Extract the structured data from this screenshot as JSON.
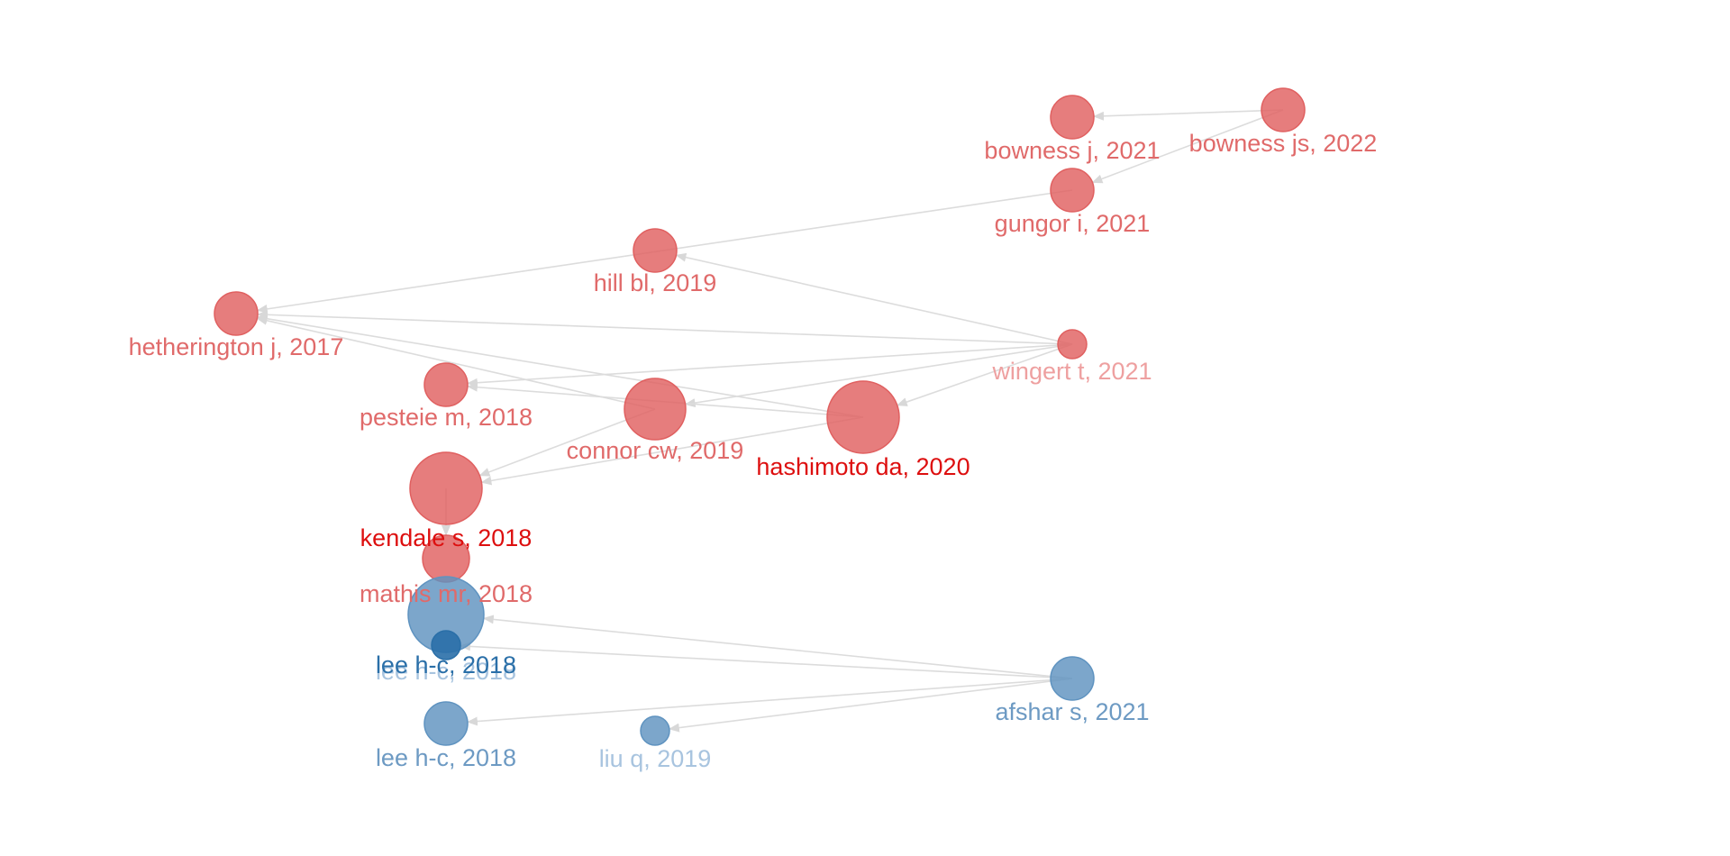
{
  "colors": {
    "red": "#e06060",
    "red_label": "#e06a6a",
    "red_dark_label": "#dd0f0f",
    "red_light_label": "#eea0a0",
    "blue": "#5f93c0",
    "blue_label": "#6d9ac3",
    "blue_dark": "#2a6fa8",
    "blue_light_label": "#a8c4df",
    "edge": "#dcdcdc"
  },
  "nodes": [
    {
      "id": "bowness_js_2022",
      "label": "bowness js, 2022",
      "cluster": "red",
      "weight": 2
    },
    {
      "id": "bowness_j_2021",
      "label": "bowness j, 2021",
      "cluster": "red",
      "weight": 2
    },
    {
      "id": "gungor_i_2021",
      "label": "gungor i, 2021",
      "cluster": "red",
      "weight": 2
    },
    {
      "id": "hill_bl_2019",
      "label": "hill bl, 2019",
      "cluster": "red",
      "weight": 2
    },
    {
      "id": "hetherington_j_2017",
      "label": "hetherington j, 2017",
      "cluster": "red",
      "weight": 2
    },
    {
      "id": "wingert_t_2021",
      "label": "wingert t, 2021",
      "cluster": "red",
      "weight": 1,
      "label_tone": "light"
    },
    {
      "id": "pesteie_m_2018",
      "label": "pesteie m, 2018",
      "cluster": "red",
      "weight": 2
    },
    {
      "id": "connor_cw_2019",
      "label": "connor cw, 2019",
      "cluster": "red",
      "weight": 3
    },
    {
      "id": "hashimoto_da_2020",
      "label": "hashimoto da, 2020",
      "cluster": "red",
      "weight": 4,
      "label_tone": "dark"
    },
    {
      "id": "kendale_s_2018",
      "label": "kendale s, 2018",
      "cluster": "red",
      "weight": 4,
      "label_tone": "dark"
    },
    {
      "id": "mathis_mr_2018",
      "label": "mathis mr, 2018",
      "cluster": "red",
      "weight": 2
    },
    {
      "id": "lee_hc_2018_a",
      "label": "lee h-c, 2018",
      "cluster": "blue",
      "weight": 4,
      "label_tone": "light"
    },
    {
      "id": "lee_hc_2018_b",
      "label": "lee h-c, 2018",
      "cluster": "blue",
      "weight": 1,
      "label_tone": "dark"
    },
    {
      "id": "lee_hc_2018_c",
      "label": "lee h-c, 2018",
      "cluster": "blue",
      "weight": 2
    },
    {
      "id": "liu_q_2019",
      "label": "liu q, 2019",
      "cluster": "blue",
      "weight": 1,
      "label_tone": "light"
    },
    {
      "id": "afshar_s_2021",
      "label": "afshar s, 2021",
      "cluster": "blue",
      "weight": 2
    }
  ],
  "edges": [
    {
      "from": "bowness_js_2022",
      "to": "bowness_j_2021"
    },
    {
      "from": "bowness_js_2022",
      "to": "gungor_i_2021"
    },
    {
      "from": "gungor_i_2021",
      "to": "hetherington_j_2017"
    },
    {
      "from": "wingert_t_2021",
      "to": "hill_bl_2019"
    },
    {
      "from": "wingert_t_2021",
      "to": "hetherington_j_2017"
    },
    {
      "from": "wingert_t_2021",
      "to": "pesteie_m_2018"
    },
    {
      "from": "wingert_t_2021",
      "to": "connor_cw_2019"
    },
    {
      "from": "wingert_t_2021",
      "to": "hashimoto_da_2020"
    },
    {
      "from": "hashimoto_da_2020",
      "to": "hetherington_j_2017"
    },
    {
      "from": "hashimoto_da_2020",
      "to": "pesteie_m_2018"
    },
    {
      "from": "hashimoto_da_2020",
      "to": "kendale_s_2018"
    },
    {
      "from": "connor_cw_2019",
      "to": "hetherington_j_2017"
    },
    {
      "from": "connor_cw_2019",
      "to": "kendale_s_2018"
    },
    {
      "from": "kendale_s_2018",
      "to": "mathis_mr_2018"
    },
    {
      "from": "afshar_s_2021",
      "to": "lee_hc_2018_a"
    },
    {
      "from": "afshar_s_2021",
      "to": "lee_hc_2018_b"
    },
    {
      "from": "afshar_s_2021",
      "to": "lee_hc_2018_c"
    },
    {
      "from": "afshar_s_2021",
      "to": "liu_q_2019"
    }
  ]
}
